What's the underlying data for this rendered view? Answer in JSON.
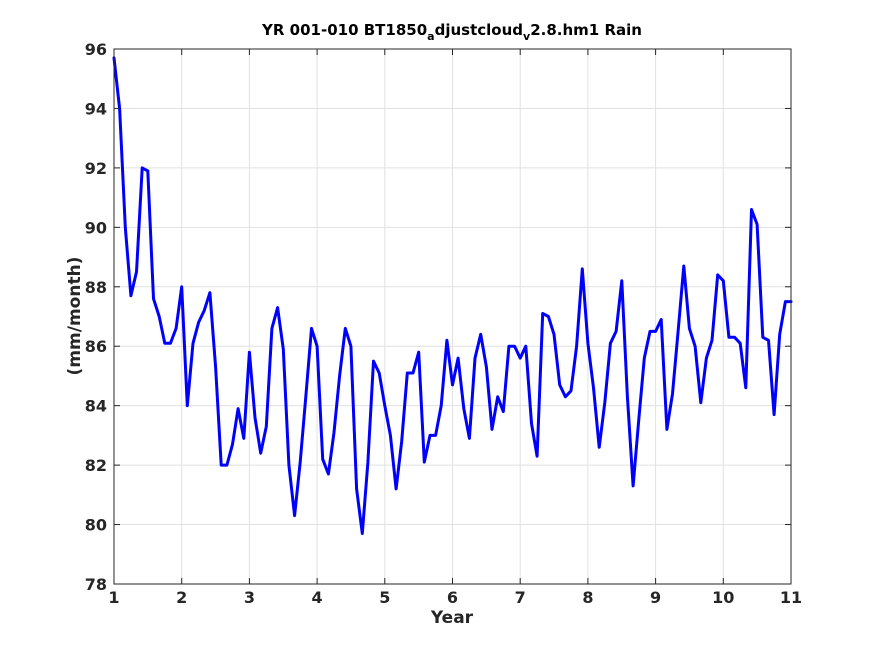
{
  "chart_data": {
    "type": "line",
    "title": "YR 001-010 BT1850",
    "title_parts": {
      "prefix": "YR 001-010 BT1850",
      "sub1": "a",
      "mid": "djustcloud",
      "sub2": "v",
      "suffix": "2.8.hm1 Rain"
    },
    "xlabel": "Year",
    "ylabel": "(mm/month)",
    "xlim": [
      1,
      11
    ],
    "ylim": [
      78,
      96
    ],
    "xticks": [
      1,
      2,
      3,
      4,
      5,
      6,
      7,
      8,
      9,
      10,
      11
    ],
    "yticks": [
      78,
      80,
      82,
      84,
      86,
      88,
      90,
      92,
      94,
      96
    ],
    "grid": true,
    "line_color": "#0000ff",
    "series": [
      {
        "x": [
          1.0,
          1.083,
          1.167,
          1.25,
          1.333,
          1.417,
          1.5,
          1.583,
          1.667,
          1.75,
          1.833,
          1.917,
          2.0,
          2.083,
          2.167,
          2.25,
          2.333,
          2.417,
          2.5,
          2.583,
          2.667,
          2.75,
          2.833,
          2.917,
          3.0,
          3.083,
          3.167,
          3.25,
          3.333,
          3.417,
          3.5,
          3.583,
          3.667,
          3.75,
          3.833,
          3.917,
          4.0,
          4.083,
          4.167,
          4.25,
          4.333,
          4.417,
          4.5,
          4.583,
          4.667,
          4.75,
          4.833,
          4.917,
          5.0,
          5.083,
          5.167,
          5.25,
          5.333,
          5.417,
          5.5,
          5.583,
          5.667,
          5.75,
          5.833,
          5.917,
          6.0,
          6.083,
          6.167,
          6.25,
          6.333,
          6.417,
          6.5,
          6.583,
          6.667,
          6.75,
          6.833,
          6.917,
          7.0,
          7.083,
          7.167,
          7.25,
          7.333,
          7.417,
          7.5,
          7.583,
          7.667,
          7.75,
          7.833,
          7.917,
          8.0,
          8.083,
          8.167,
          8.25,
          8.333,
          8.417,
          8.5,
          8.583,
          8.667,
          8.75,
          8.833,
          8.917,
          9.0,
          9.083,
          9.167,
          9.25,
          9.333,
          9.417,
          9.5,
          9.583,
          9.667,
          9.75,
          9.833,
          9.917,
          10.0,
          10.083,
          10.167,
          10.25,
          10.333,
          10.417,
          10.5,
          10.583,
          10.667,
          10.75,
          10.833,
          10.917,
          11.0
        ],
        "values": [
          95.7,
          94.0,
          90.0,
          87.7,
          88.5,
          92.0,
          91.9,
          87.6,
          87.0,
          86.1,
          86.1,
          86.6,
          88.0,
          84.0,
          86.1,
          86.8,
          87.2,
          87.8,
          85.3,
          82.0,
          82.0,
          82.7,
          83.9,
          82.9,
          85.8,
          83.6,
          82.4,
          83.3,
          86.6,
          87.3,
          85.9,
          82.0,
          80.3,
          82.1,
          84.3,
          86.6,
          86.0,
          82.2,
          81.7,
          83.1,
          85.0,
          86.6,
          86.0,
          81.2,
          79.7,
          82.1,
          85.5,
          85.1,
          84.0,
          83.0,
          81.2,
          82.8,
          85.1,
          85.1,
          85.8,
          82.1,
          83.0,
          83.0,
          84.0,
          86.2,
          84.7,
          85.6,
          83.9,
          82.9,
          85.6,
          86.4,
          85.3,
          83.2,
          84.3,
          83.8,
          86.0,
          86.0,
          85.6,
          86.0,
          83.4,
          82.3,
          87.1,
          87.0,
          86.4,
          84.7,
          84.3,
          84.5,
          86.0,
          88.6,
          86.1,
          84.6,
          82.6,
          84.1,
          86.1,
          86.5,
          88.2,
          84.3,
          81.3,
          83.5,
          85.6,
          86.5,
          86.5,
          86.9,
          83.2,
          84.4,
          86.5,
          88.7,
          86.6,
          86.0,
          84.1,
          85.6,
          86.2,
          88.4,
          88.2,
          86.3,
          86.3,
          86.1,
          84.6,
          90.6,
          90.1,
          86.3,
          86.2,
          83.7,
          86.4,
          87.5,
          87.5
        ]
      }
    ]
  }
}
